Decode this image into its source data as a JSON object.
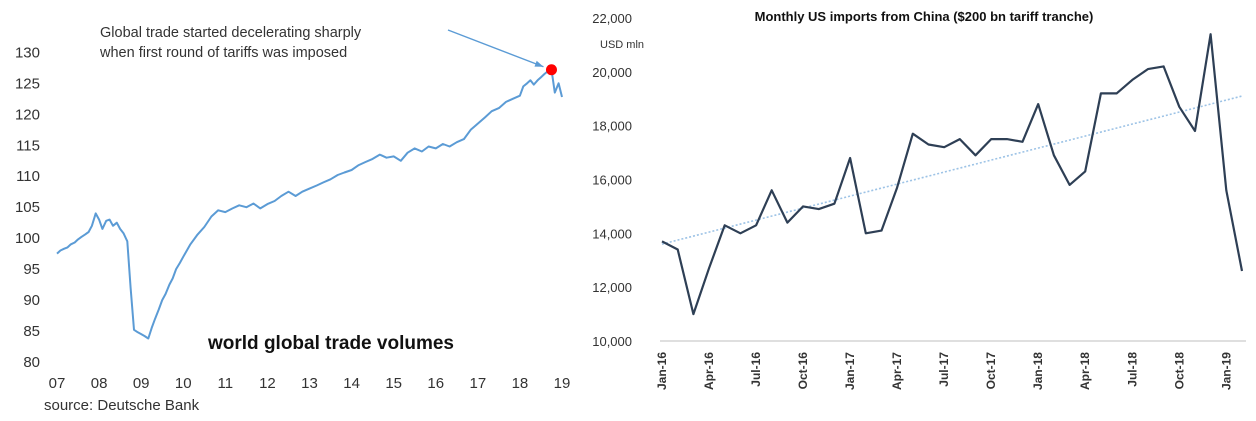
{
  "charts": [
    {
      "type": "line",
      "title": "world global trade volumes",
      "annotation": "Global trade started decelerating sharply|when first round of tariffs was imposed",
      "source": "source: Deutsche Bank",
      "x_tick_labels": [
        "07",
        "08",
        "09",
        "10",
        "11",
        "12",
        "13",
        "14",
        "15",
        "16",
        "17",
        "18",
        "19"
      ],
      "y_ticks": [
        80,
        85,
        90,
        95,
        100,
        105,
        110,
        115,
        120,
        125,
        130
      ],
      "xlim": [
        2007.0,
        2019.0
      ],
      "ylim": [
        80,
        132
      ],
      "colors": {
        "line": "#5b9bd5",
        "marker": "#ff0000",
        "arrow": "#5b9bd5"
      },
      "highlight_point": {
        "x": 2018.75,
        "y": 127.2
      },
      "series": [
        {
          "x": [
            2007.0,
            2007.08,
            2007.17,
            2007.25,
            2007.33,
            2007.42,
            2007.5,
            2007.58,
            2007.67,
            2007.75,
            2007.83,
            2007.92,
            2008.0,
            2008.08,
            2008.17,
            2008.25,
            2008.33,
            2008.42,
            2008.5,
            2008.58,
            2008.67,
            2008.75,
            2008.83,
            2008.92,
            2009.0,
            2009.08,
            2009.17,
            2009.25,
            2009.33,
            2009.42,
            2009.5,
            2009.58,
            2009.67,
            2009.75,
            2009.83,
            2009.92,
            2010.0,
            2010.17,
            2010.33,
            2010.5,
            2010.67,
            2010.83,
            2011.0,
            2011.17,
            2011.33,
            2011.5,
            2011.67,
            2011.83,
            2012.0,
            2012.17,
            2012.33,
            2012.5,
            2012.67,
            2012.83,
            2013.0,
            2013.17,
            2013.33,
            2013.5,
            2013.67,
            2013.83,
            2014.0,
            2014.17,
            2014.33,
            2014.5,
            2014.67,
            2014.83,
            2015.0,
            2015.17,
            2015.33,
            2015.5,
            2015.67,
            2015.83,
            2016.0,
            2016.17,
            2016.33,
            2016.5,
            2016.67,
            2016.83,
            2017.0,
            2017.17,
            2017.33,
            2017.5,
            2017.67,
            2017.83,
            2018.0,
            2018.08,
            2018.17,
            2018.25,
            2018.33,
            2018.42,
            2018.5,
            2018.58,
            2018.67,
            2018.75,
            2018.83,
            2018.92,
            2019.0
          ],
          "y": [
            97.5,
            98.0,
            98.3,
            98.5,
            99.0,
            99.3,
            99.8,
            100.2,
            100.6,
            101.0,
            102.0,
            104.0,
            103.0,
            101.5,
            102.8,
            103.0,
            102.0,
            102.5,
            101.5,
            100.8,
            99.5,
            92.0,
            85.2,
            84.8,
            84.5,
            84.2,
            83.8,
            85.5,
            87.0,
            88.5,
            90.0,
            91.0,
            92.5,
            93.5,
            95.0,
            96.0,
            97.0,
            99.0,
            100.5,
            101.8,
            103.5,
            104.5,
            104.2,
            104.8,
            105.3,
            105.0,
            105.6,
            104.8,
            105.5,
            106.0,
            106.8,
            107.5,
            106.8,
            107.5,
            108.0,
            108.5,
            109.0,
            109.5,
            110.2,
            110.6,
            111.0,
            111.8,
            112.3,
            112.8,
            113.5,
            113.0,
            113.2,
            112.5,
            113.8,
            114.5,
            114.0,
            114.8,
            114.5,
            115.2,
            114.8,
            115.5,
            116.0,
            117.5,
            118.5,
            119.5,
            120.5,
            121.0,
            122.0,
            122.5,
            123.0,
            124.5,
            125.0,
            125.5,
            124.8,
            125.5,
            126.0,
            126.5,
            127.0,
            127.2,
            123.5,
            125.0,
            122.8
          ]
        }
      ]
    },
    {
      "type": "line",
      "title": "Monthly US imports from China ($200 bn tariff tranche)",
      "ylabel": "USD mln",
      "categories": [
        "Jan-16",
        "Feb-16",
        "Mar-16",
        "Apr-16",
        "May-16",
        "Jun-16",
        "Jul-16",
        "Aug-16",
        "Sep-16",
        "Oct-16",
        "Nov-16",
        "Dec-16",
        "Jan-17",
        "Feb-17",
        "Mar-17",
        "Apr-17",
        "May-17",
        "Jun-17",
        "Jul-17",
        "Aug-17",
        "Sep-17",
        "Oct-17",
        "Nov-17",
        "Dec-17",
        "Jan-18",
        "Feb-18",
        "Mar-18",
        "Apr-18",
        "May-18",
        "Jun-18",
        "Jul-18",
        "Aug-18",
        "Sep-18",
        "Oct-18",
        "Nov-18",
        "Dec-18",
        "Jan-19",
        "Feb-19"
      ],
      "x_tick_labels": [
        "Jan-16",
        "Apr-16",
        "Jul-16",
        "Oct-16",
        "Jan-17",
        "Apr-17",
        "Jul-17",
        "Oct-17",
        "Jan-18",
        "Apr-18",
        "Jul-18",
        "Oct-18",
        "Jan-19"
      ],
      "y_ticks": [
        "10,000",
        "12,000",
        "14,000",
        "16,000",
        "18,000",
        "20,000",
        "22,000"
      ],
      "ylim": [
        10000,
        22000
      ],
      "colors": {
        "line": "#2e3f55",
        "trend": "#9dc3e6"
      },
      "trend": {
        "start": 13600,
        "end": 19100
      },
      "series": [
        {
          "values": [
            13700,
            13400,
            11000,
            12700,
            14300,
            14000,
            14300,
            15600,
            14400,
            15000,
            14900,
            15100,
            16800,
            14000,
            14100,
            15700,
            17700,
            17300,
            17200,
            17500,
            16900,
            17500,
            17500,
            17400,
            18800,
            16900,
            15800,
            16300,
            19200,
            19200,
            19700,
            20100,
            20200,
            18700,
            17800,
            21400,
            15600,
            12600
          ]
        }
      ]
    }
  ]
}
